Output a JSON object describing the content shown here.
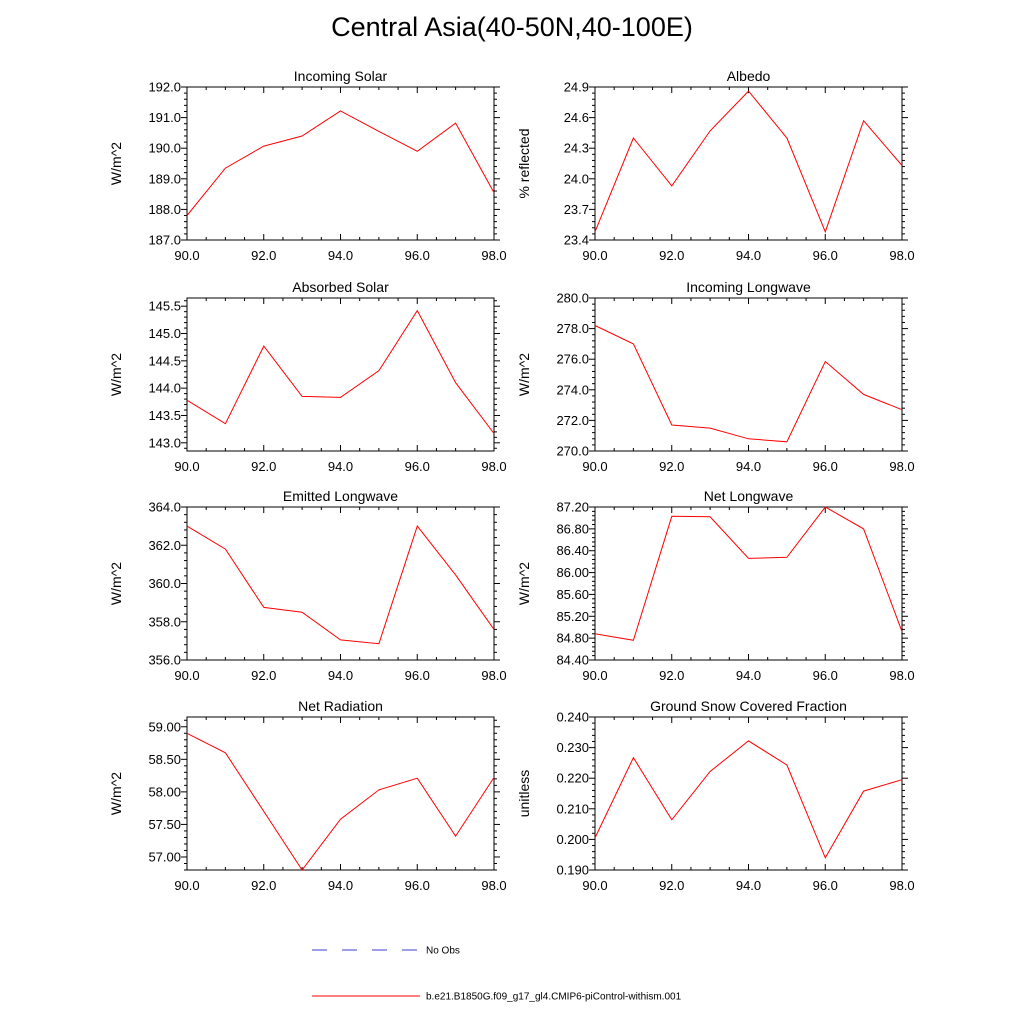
{
  "page": {
    "title": "Central Asia(40-50N,40-100E)"
  },
  "legend": {
    "items": [
      {
        "label": "No Obs",
        "color": "#3b3bd0",
        "style": "dashed"
      },
      {
        "label": "b.e21.B1850G.f09_g17_gl4.CMIP6-piControl-withism.001",
        "color": "#ff0000",
        "style": "solid"
      }
    ]
  },
  "chart_data": [
    {
      "type": "line",
      "title": "Incoming Solar",
      "ylabel": "W/m^2",
      "xlim": [
        90,
        98
      ],
      "ylim": [
        187.0,
        192.0
      ],
      "xticks": [
        "90.0",
        "92.0",
        "94.0",
        "96.0",
        "98.0"
      ],
      "yticks": [
        "187.0",
        "188.0",
        "189.0",
        "190.0",
        "191.0",
        "192.0"
      ],
      "x": [
        90,
        91,
        92,
        93,
        94,
        95,
        96,
        97,
        98
      ],
      "series": [
        {
          "color": "#ff0000",
          "values": [
            187.8,
            189.35,
            190.07,
            190.4,
            191.22,
            190.55,
            189.9,
            190.82,
            188.55
          ]
        }
      ]
    },
    {
      "type": "line",
      "title": "Albedo",
      "ylabel": "% reflected",
      "xlim": [
        90,
        98
      ],
      "ylim": [
        23.4,
        24.9
      ],
      "xticks": [
        "90.0",
        "92.0",
        "94.0",
        "96.0",
        "98.0"
      ],
      "yticks": [
        "23.4",
        "23.7",
        "24.0",
        "24.3",
        "24.6",
        "24.9"
      ],
      "x": [
        90,
        91,
        92,
        93,
        94,
        95,
        96,
        97,
        98
      ],
      "series": [
        {
          "color": "#ff0000",
          "values": [
            23.48,
            24.4,
            23.93,
            24.47,
            24.86,
            24.4,
            23.48,
            24.57,
            24.13
          ]
        }
      ]
    },
    {
      "type": "line",
      "title": "Absorbed Solar",
      "ylabel": "W/m^2",
      "xlim": [
        90,
        98
      ],
      "ylim": [
        142.85,
        145.65
      ],
      "xticks": [
        "90.0",
        "92.0",
        "94.0",
        "96.0",
        "98.0"
      ],
      "yticks": [
        "143.0",
        "143.5",
        "144.0",
        "144.5",
        "145.0",
        "145.5"
      ],
      "x": [
        90,
        91,
        92,
        93,
        94,
        95,
        96,
        97,
        98
      ],
      "series": [
        {
          "color": "#ff0000",
          "values": [
            143.78,
            143.35,
            144.77,
            143.85,
            143.83,
            144.32,
            145.42,
            144.1,
            143.17
          ]
        }
      ]
    },
    {
      "type": "line",
      "title": "Incoming Longwave",
      "ylabel": "W/m^2",
      "xlim": [
        90,
        98
      ],
      "ylim": [
        270.0,
        280.0
      ],
      "xticks": [
        "90.0",
        "92.0",
        "94.0",
        "96.0",
        "98.0"
      ],
      "yticks": [
        "270.0",
        "272.0",
        "274.0",
        "276.0",
        "278.0",
        "280.0"
      ],
      "x": [
        90,
        91,
        92,
        93,
        94,
        95,
        96,
        97,
        98
      ],
      "series": [
        {
          "color": "#ff0000",
          "values": [
            278.2,
            277.0,
            271.7,
            271.5,
            270.8,
            270.6,
            275.85,
            273.7,
            272.7
          ]
        }
      ]
    },
    {
      "type": "line",
      "title": "Emitted Longwave",
      "ylabel": "W/m^2",
      "xlim": [
        90,
        98
      ],
      "ylim": [
        356.0,
        364.0
      ],
      "xticks": [
        "90.0",
        "92.0",
        "94.0",
        "96.0",
        "98.0"
      ],
      "yticks": [
        "356.0",
        "358.0",
        "360.0",
        "362.0",
        "364.0"
      ],
      "x": [
        90,
        91,
        92,
        93,
        94,
        95,
        96,
        97,
        98
      ],
      "series": [
        {
          "color": "#ff0000",
          "values": [
            363.0,
            361.8,
            358.75,
            358.5,
            357.05,
            356.85,
            363.0,
            360.45,
            357.6
          ]
        }
      ]
    },
    {
      "type": "line",
      "title": "Net Longwave",
      "ylabel": "W/m^2",
      "xlim": [
        90,
        98
      ],
      "ylim": [
        84.4,
        87.2
      ],
      "xticks": [
        "90.0",
        "92.0",
        "94.0",
        "96.0",
        "98.0"
      ],
      "yticks": [
        "84.40",
        "84.80",
        "85.20",
        "85.60",
        "86.00",
        "86.40",
        "86.80",
        "87.20"
      ],
      "x": [
        90,
        91,
        92,
        93,
        94,
        95,
        96,
        97,
        98
      ],
      "series": [
        {
          "color": "#ff0000",
          "values": [
            84.88,
            84.76,
            87.03,
            87.02,
            86.26,
            86.28,
            87.2,
            86.8,
            84.92
          ]
        }
      ]
    },
    {
      "type": "line",
      "title": "Net Radiation",
      "ylabel": "W/m^2",
      "xlim": [
        90,
        98
      ],
      "ylim": [
        56.8,
        59.15
      ],
      "xticks": [
        "90.0",
        "92.0",
        "94.0",
        "96.0",
        "98.0"
      ],
      "yticks": [
        "57.00",
        "57.50",
        "58.00",
        "58.50",
        "59.00"
      ],
      "x": [
        90,
        91,
        92,
        93,
        94,
        95,
        96,
        97,
        98
      ],
      "series": [
        {
          "color": "#ff0000",
          "values": [
            58.9,
            58.6,
            57.7,
            56.8,
            57.58,
            58.03,
            58.21,
            57.32,
            58.22
          ]
        }
      ]
    },
    {
      "type": "line",
      "title": "Ground Snow Covered Fraction",
      "ylabel": "unitless",
      "xlim": [
        90,
        98
      ],
      "ylim": [
        0.19,
        0.24
      ],
      "xticks": [
        "90.0",
        "92.0",
        "94.0",
        "96.0",
        "98.0"
      ],
      "yticks": [
        "0.190",
        "0.200",
        "0.210",
        "0.220",
        "0.230",
        "0.240"
      ],
      "x": [
        90,
        91,
        92,
        93,
        94,
        95,
        96,
        97,
        98
      ],
      "series": [
        {
          "color": "#ff0000",
          "values": [
            0.2005,
            0.2267,
            0.2064,
            0.2222,
            0.2322,
            0.2243,
            0.194,
            0.2158,
            0.2195
          ]
        }
      ]
    }
  ]
}
